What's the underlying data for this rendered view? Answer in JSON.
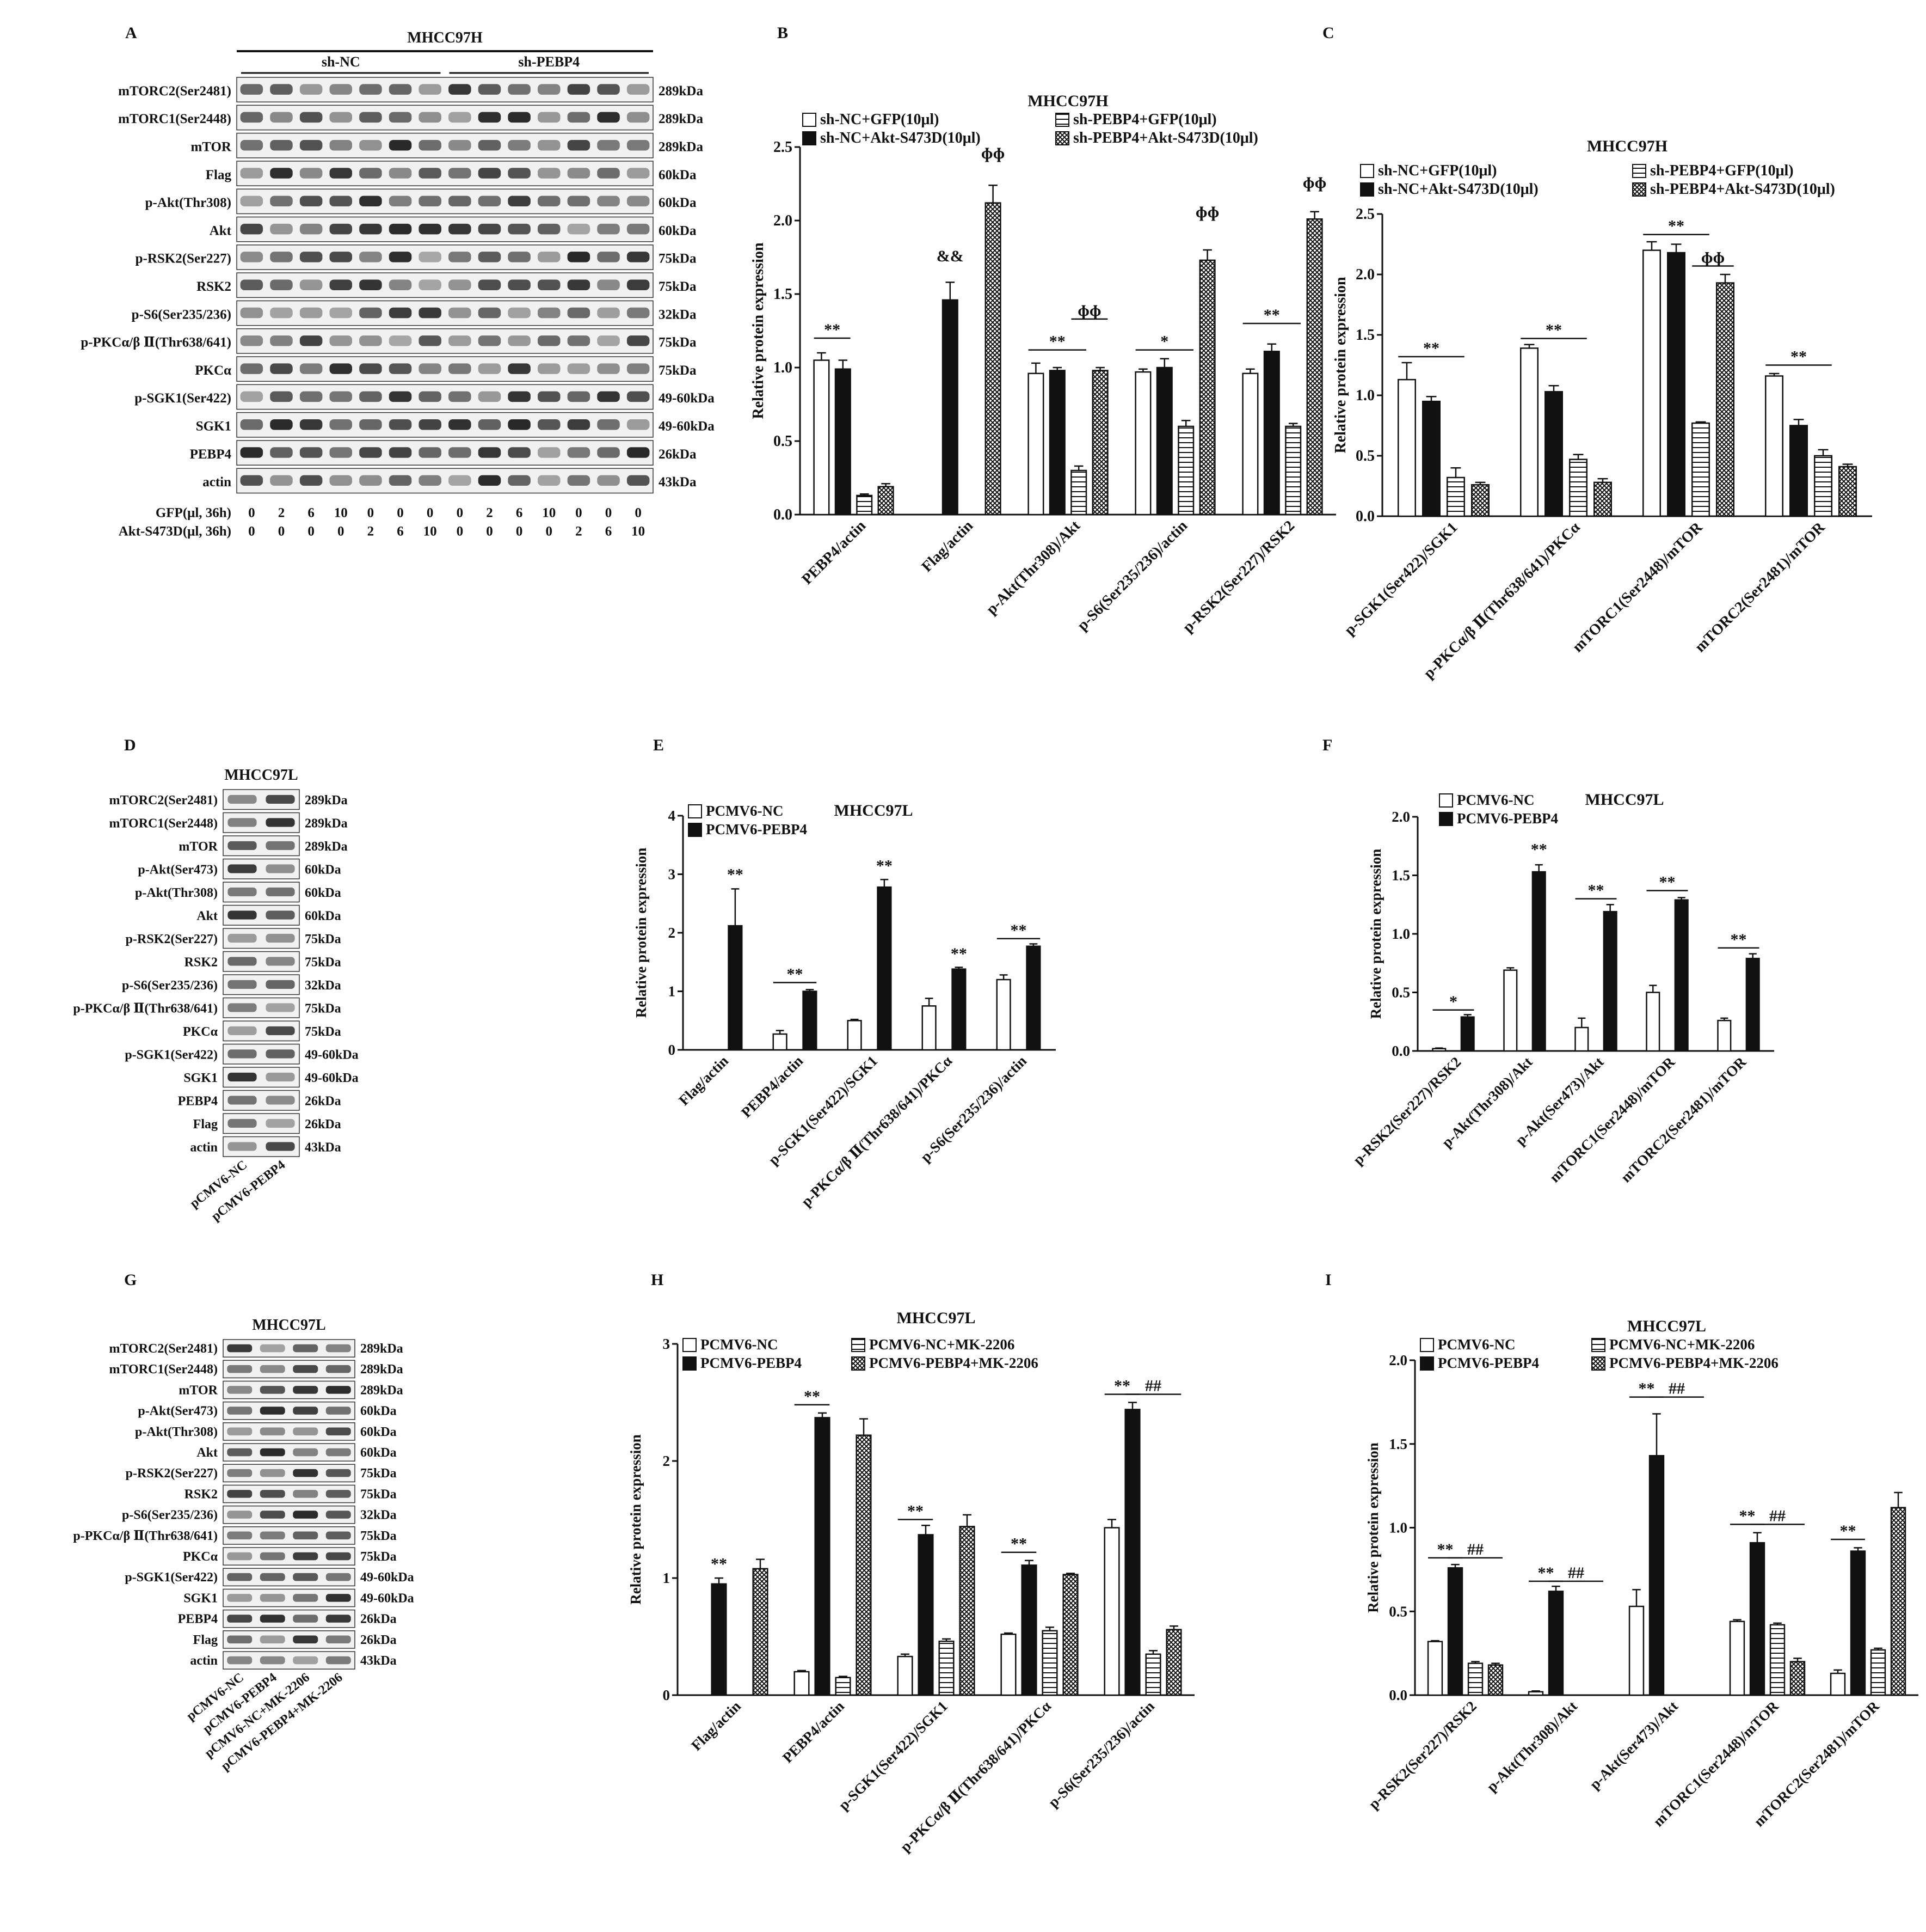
{
  "panel_letters": [
    "A",
    "B",
    "C",
    "D",
    "E",
    "F",
    "G",
    "H",
    "I"
  ],
  "colors": {
    "ink": "#111111",
    "blot_bg": "#f1f1f1",
    "band": "#1c1c1c"
  },
  "blots": {
    "A": {
      "title": "MHCC97H",
      "groups": [
        "sh-NC",
        "sh-PEBP4"
      ],
      "lanes": 14,
      "rows": [
        {
          "name": "mTORC2(Ser2481)",
          "kda": "289kDa"
        },
        {
          "name": "mTORC1(Ser2448)",
          "kda": "289kDa"
        },
        {
          "name": "mTOR",
          "kda": "289kDa"
        },
        {
          "name": "Flag",
          "kda": "60kDa"
        },
        {
          "name": "p-Akt(Thr308)",
          "kda": "60kDa"
        },
        {
          "name": "Akt",
          "kda": "60kDa"
        },
        {
          "name": "p-RSK2(Ser227)",
          "kda": "75kDa"
        },
        {
          "name": "RSK2",
          "kda": "75kDa"
        },
        {
          "name": "p-S6(Ser235/236)",
          "kda": "32kDa"
        },
        {
          "name": "p-PKCα/β Ⅱ(Thr638/641)",
          "kda": "75kDa"
        },
        {
          "name": "PKCα",
          "kda": "75kDa"
        },
        {
          "name": "p-SGK1(Ser422)",
          "kda": "49-60kDa"
        },
        {
          "name": "SGK1",
          "kda": "49-60kDa"
        },
        {
          "name": "PEBP4",
          "kda": "26kDa"
        },
        {
          "name": "actin",
          "kda": "43kDa"
        }
      ],
      "dose_rows": [
        {
          "label": "GFP(μl, 36h)",
          "values": [
            "0",
            "2",
            "6",
            "10",
            "0",
            "0",
            "0",
            "0",
            "2",
            "6",
            "10",
            "0",
            "0",
            "0"
          ]
        },
        {
          "label": "Akt-S473D(μl, 36h)",
          "values": [
            "0",
            "0",
            "0",
            "0",
            "2",
            "6",
            "10",
            "0",
            "0",
            "0",
            "0",
            "2",
            "6",
            "10"
          ]
        }
      ]
    },
    "D": {
      "title": "MHCC97L",
      "lanes": 2,
      "rows": [
        {
          "name": "mTORC2(Ser2481)",
          "kda": "289kDa"
        },
        {
          "name": "mTORC1(Ser2448)",
          "kda": "289kDa"
        },
        {
          "name": "mTOR",
          "kda": "289kDa"
        },
        {
          "name": "p-Akt(Ser473)",
          "kda": "60kDa"
        },
        {
          "name": "p-Akt(Thr308)",
          "kda": "60kDa"
        },
        {
          "name": "Akt",
          "kda": "60kDa"
        },
        {
          "name": "p-RSK2(Ser227)",
          "kda": "75kDa"
        },
        {
          "name": "RSK2",
          "kda": "75kDa"
        },
        {
          "name": "p-S6(Ser235/236)",
          "kda": "32kDa"
        },
        {
          "name": "p-PKCα/β Ⅱ(Thr638/641)",
          "kda": "75kDa"
        },
        {
          "name": "PKCα",
          "kda": "75kDa"
        },
        {
          "name": "p-SGK1(Ser422)",
          "kda": "49-60kDa"
        },
        {
          "name": "SGK1",
          "kda": "49-60kDa"
        },
        {
          "name": "PEBP4",
          "kda": "26kDa"
        },
        {
          "name": "Flag",
          "kda": "26kDa"
        },
        {
          "name": "actin",
          "kda": "43kDa"
        }
      ],
      "lane_labels": [
        "pCMV6-NC",
        "pCMV6-PEBP4"
      ]
    },
    "G": {
      "title": "MHCC97L",
      "lanes": 4,
      "rows": [
        {
          "name": "mTORC2(Ser2481)",
          "kda": "289kDa"
        },
        {
          "name": "mTORC1(Ser2448)",
          "kda": "289kDa"
        },
        {
          "name": "mTOR",
          "kda": "289kDa"
        },
        {
          "name": "p-Akt(Ser473)",
          "kda": "60kDa"
        },
        {
          "name": "p-Akt(Thr308)",
          "kda": "60kDa"
        },
        {
          "name": "Akt",
          "kda": "60kDa"
        },
        {
          "name": "p-RSK2(Ser227)",
          "kda": "75kDa"
        },
        {
          "name": "RSK2",
          "kda": "75kDa"
        },
        {
          "name": "p-S6(Ser235/236)",
          "kda": "32kDa"
        },
        {
          "name": "p-PKCα/β Ⅱ(Thr638/641)",
          "kda": "75kDa"
        },
        {
          "name": "PKCα",
          "kda": "75kDa"
        },
        {
          "name": "p-SGK1(Ser422)",
          "kda": "49-60kDa"
        },
        {
          "name": "SGK1",
          "kda": "49-60kDa"
        },
        {
          "name": "PEBP4",
          "kda": "26kDa"
        },
        {
          "name": "Flag",
          "kda": "26kDa"
        },
        {
          "name": "actin",
          "kda": "43kDa"
        }
      ],
      "lane_labels": [
        "pCMV6-NC",
        "pCMV6-PEBP4",
        "pCMV6-NC+MK-2206",
        "pCMV6-PEBP4+MK-2206"
      ]
    }
  },
  "chart_data": [
    {
      "panel": "B",
      "type": "bar",
      "title": "MHCC97H",
      "ylabel": "Relative protein expression",
      "ylim": [
        0,
        2.5
      ],
      "yticks": [
        "0.0",
        "0.5",
        "1.0",
        "1.5",
        "2.0",
        "2.5"
      ],
      "categories": [
        "PEBP4/actin",
        "Flag/actin",
        "p-Akt(Thr308)/Akt",
        "p-S6(Ser235/236)/actin",
        "p-RSK2(Ser227)/RSK2"
      ],
      "series": [
        {
          "name": "sh-NC+GFP(10μl)",
          "pattern": "open",
          "values": [
            1.05,
            0,
            0.96,
            0.97,
            0.96
          ],
          "errors": [
            0.05,
            0,
            0.07,
            0.02,
            0.03
          ]
        },
        {
          "name": "sh-NC+Akt-S473D(10μl)",
          "pattern": "solid",
          "values": [
            0.99,
            1.46,
            0.98,
            1.0,
            1.11
          ],
          "errors": [
            0.06,
            0.12,
            0.02,
            0.06,
            0.05
          ]
        },
        {
          "name": "sh-PEBP4+GFP(10μl)",
          "pattern": "hlines",
          "values": [
            0.13,
            0,
            0.3,
            0.6,
            0.6
          ],
          "errors": [
            0.01,
            0,
            0.03,
            0.04,
            0.02
          ]
        },
        {
          "name": "sh-PEBP4+Akt-S473D(10μl)",
          "pattern": "cross",
          "values": [
            0.19,
            2.12,
            0.98,
            1.73,
            2.01
          ],
          "errors": [
            0.02,
            0.12,
            0.02,
            0.07,
            0.05
          ]
        }
      ],
      "annotations": [
        {
          "text": "**",
          "cat": 0,
          "from": 0,
          "to": 1,
          "y": 1.2
        },
        {
          "text": "&&",
          "cat": 1,
          "s": 1,
          "y": 1.7
        },
        {
          "text": "ɸɸ",
          "cat": 1,
          "s": 3,
          "y": 2.4
        },
        {
          "text": "**",
          "cat": 2,
          "from": 0,
          "to": 2,
          "y": 1.12
        },
        {
          "text": "ɸɸ",
          "cat": 2,
          "from": 2,
          "to": 3,
          "y": 1.33
        },
        {
          "text": "*",
          "cat": 3,
          "from": 0,
          "to": 2,
          "y": 1.12
        },
        {
          "text": "ɸɸ",
          "cat": 3,
          "s": 3,
          "y": 2.0
        },
        {
          "text": "**",
          "cat": 4,
          "from": 0,
          "to": 2,
          "y": 1.3
        },
        {
          "text": "ɸɸ",
          "cat": 4,
          "s": 3,
          "y": 2.2
        }
      ]
    },
    {
      "panel": "C",
      "type": "bar",
      "title": "MHCC97H",
      "ylabel": "Relative protein expression",
      "ylim": [
        0,
        2.5
      ],
      "yticks": [
        "0.0",
        "0.5",
        "1.0",
        "1.5",
        "2.0",
        "2.5"
      ],
      "categories": [
        "p-SGK1(Ser422)/SGK1",
        "p-PKCα/β Ⅱ(Thr638/641)/PKCα",
        "mTORC1(Ser2448)/mTOR",
        "mTORC2(Ser2481)/mTOR"
      ],
      "series": [
        {
          "name": "sh-NC+GFP(10μl)",
          "pattern": "open",
          "values": [
            1.13,
            1.39,
            2.2,
            1.16
          ],
          "errors": [
            0.14,
            0.03,
            0.07,
            0.02
          ]
        },
        {
          "name": "sh-NC+Akt-S473D(10μl)",
          "pattern": "solid",
          "values": [
            0.95,
            1.03,
            2.18,
            0.75
          ],
          "errors": [
            0.04,
            0.05,
            0.07,
            0.05
          ]
        },
        {
          "name": "sh-PEBP4+GFP(10μl)",
          "pattern": "hlines",
          "values": [
            0.32,
            0.47,
            0.77,
            0.5
          ],
          "errors": [
            0.08,
            0.04,
            0.01,
            0.05
          ]
        },
        {
          "name": "sh-PEBP4+Akt-S473D(10μl)",
          "pattern": "cross",
          "values": [
            0.26,
            0.28,
            1.93,
            0.41
          ],
          "errors": [
            0.02,
            0.03,
            0.07,
            0.02
          ]
        }
      ],
      "annotations": [
        {
          "text": "**",
          "cat": 0,
          "from": 0,
          "to": 2,
          "y": 1.32
        },
        {
          "text": "**",
          "cat": 1,
          "from": 0,
          "to": 2,
          "y": 1.47
        },
        {
          "text": "**",
          "cat": 2,
          "from": 0,
          "to": 2,
          "y": 2.33
        },
        {
          "text": "ɸɸ",
          "cat": 2,
          "from": 2,
          "to": 3,
          "y": 2.07
        },
        {
          "text": "**",
          "cat": 3,
          "from": 0,
          "to": 2,
          "y": 1.25
        }
      ]
    },
    {
      "panel": "E",
      "type": "bar",
      "title": "MHCC97L",
      "ylabel": "Relative protein expression",
      "ylim": [
        0,
        4
      ],
      "yticks": [
        "0",
        "1",
        "2",
        "3",
        "4"
      ],
      "categories": [
        "Flag/actin",
        "PEBP4/actin",
        "p-SGK1(Ser422)/SGK1",
        "p-PKCα/β Ⅱ(Thr638/641)/PKCα",
        "p-S6(Ser235/236)/actin"
      ],
      "series": [
        {
          "name": "PCMV6-NC",
          "pattern": "open",
          "values": [
            0,
            0.27,
            0.5,
            0.75,
            1.2
          ],
          "errors": [
            0,
            0.06,
            0.02,
            0.13,
            0.08
          ]
        },
        {
          "name": "PCMV6-PEBP4",
          "pattern": "solid",
          "values": [
            2.12,
            1.0,
            2.78,
            1.38,
            1.77
          ],
          "errors": [
            0.63,
            0.03,
            0.13,
            0.03,
            0.04
          ]
        }
      ],
      "annotations": [
        {
          "text": "**",
          "cat": 0,
          "s": 1,
          "y": 2.85
        },
        {
          "text": "**",
          "cat": 1,
          "from": 0,
          "to": 1,
          "y": 1.15
        },
        {
          "text": "**",
          "cat": 2,
          "s": 1,
          "y": 3.0
        },
        {
          "text": "**",
          "cat": 3,
          "s": 1,
          "y": 1.5
        },
        {
          "text": "**",
          "cat": 4,
          "from": 0,
          "to": 1,
          "y": 1.9
        }
      ]
    },
    {
      "panel": "F",
      "type": "bar",
      "title": "MHCC97L",
      "ylabel": "Relative protein expression",
      "ylim": [
        0,
        2
      ],
      "yticks": [
        "0.0",
        "0.5",
        "1.0",
        "1.5",
        "2.0"
      ],
      "categories": [
        "p-RSK2(Ser227)/RSK2",
        "p-Akt(Thr308)/Akt",
        "p-Akt(Ser473)/Akt",
        "mTORC1(Ser2448)/mTOR",
        "mTORC2(Ser2481)/mTOR"
      ],
      "series": [
        {
          "name": "PCMV6-NC",
          "pattern": "open",
          "values": [
            0.02,
            0.69,
            0.2,
            0.5,
            0.26
          ],
          "errors": [
            0.005,
            0.02,
            0.08,
            0.06,
            0.02
          ]
        },
        {
          "name": "PCMV6-PEBP4",
          "pattern": "solid",
          "values": [
            0.29,
            1.53,
            1.19,
            1.29,
            0.79
          ],
          "errors": [
            0.02,
            0.06,
            0.06,
            0.02,
            0.04
          ]
        }
      ],
      "annotations": [
        {
          "text": "*",
          "cat": 0,
          "from": 0,
          "to": 1,
          "y": 0.35
        },
        {
          "text": "**",
          "cat": 1,
          "s": 1,
          "y": 1.65
        },
        {
          "text": "**",
          "cat": 2,
          "from": 0,
          "to": 1,
          "y": 1.3
        },
        {
          "text": "**",
          "cat": 3,
          "from": 0,
          "to": 1,
          "y": 1.37
        },
        {
          "text": "**",
          "cat": 4,
          "from": 0,
          "to": 1,
          "y": 0.88
        }
      ]
    },
    {
      "panel": "H",
      "type": "bar",
      "title": "MHCC97L",
      "ylabel": "Relative protein expression",
      "ylim": [
        0,
        3
      ],
      "yticks": [
        "0",
        "1",
        "2",
        "3"
      ],
      "categories": [
        "Flag/actin",
        "PEBP4/actin",
        "p-SGK1(Ser422)/SGK1",
        "p-PKCα/β Ⅱ(Thr638/641)/PKCα",
        "p-S6(Ser235/236)/actin"
      ],
      "series": [
        {
          "name": "PCMV6-NC",
          "pattern": "open",
          "values": [
            0,
            0.2,
            0.33,
            0.52,
            1.43
          ],
          "errors": [
            0,
            0.01,
            0.02,
            0.01,
            0.07
          ]
        },
        {
          "name": "PCMV6-PEBP4",
          "pattern": "solid",
          "values": [
            0.95,
            2.37,
            1.37,
            1.11,
            2.44
          ],
          "errors": [
            0.05,
            0.04,
            0.08,
            0.04,
            0.06
          ]
        },
        {
          "name": "PCMV6-NC+MK-2206",
          "pattern": "hlines",
          "values": [
            0,
            0.15,
            0.46,
            0.55,
            0.35
          ],
          "errors": [
            0,
            0.01,
            0.02,
            0.03,
            0.03
          ]
        },
        {
          "name": "PCMV6-PEBP4+MK-2206",
          "pattern": "cross",
          "values": [
            1.08,
            2.22,
            1.44,
            1.03,
            0.56
          ],
          "errors": [
            0.08,
            0.14,
            0.1,
            0.01,
            0.03
          ]
        }
      ],
      "annotations": [
        {
          "text": "**",
          "cat": 0,
          "s": 1,
          "y": 1.05
        },
        {
          "text": "**",
          "cat": 1,
          "from": 0,
          "to": 1,
          "y": 2.48
        },
        {
          "text": "**",
          "cat": 2,
          "from": 0,
          "to": 1,
          "y": 1.5
        },
        {
          "text": "**",
          "cat": 3,
          "from": 0,
          "to": 1,
          "y": 1.22
        },
        {
          "text": "**",
          "cat": 4,
          "from": 0,
          "to": 1,
          "y": 2.57
        },
        {
          "text": "##",
          "cat": 4,
          "from": 1,
          "to": 3,
          "y": 2.57
        }
      ]
    },
    {
      "panel": "I",
      "type": "bar",
      "title": "MHCC97L",
      "ylabel": "Relative protein expression",
      "ylim": [
        0,
        2
      ],
      "yticks": [
        "0.0",
        "0.5",
        "1.0",
        "1.5",
        "2.0"
      ],
      "categories": [
        "p-RSK2(Ser227)/RSK2",
        "p-Akt(Thr308)/Akt",
        "p-Akt(Ser473)/Akt",
        "mTORC1(Ser2448)/mTOR",
        "mTORC2(Ser2481)/mTOR"
      ],
      "series": [
        {
          "name": "PCMV6-NC",
          "pattern": "open",
          "values": [
            0.32,
            0.02,
            0.53,
            0.44,
            0.13
          ],
          "errors": [
            0.005,
            0.005,
            0.1,
            0.01,
            0.02
          ]
        },
        {
          "name": "PCMV6-PEBP4",
          "pattern": "solid",
          "values": [
            0.76,
            0.62,
            1.43,
            0.91,
            0.86
          ],
          "errors": [
            0.02,
            0.03,
            0.25,
            0.06,
            0.02
          ]
        },
        {
          "name": "PCMV6-NC+MK-2206",
          "pattern": "hlines",
          "values": [
            0.19,
            0,
            0,
            0.42,
            0.27
          ],
          "errors": [
            0.01,
            0,
            0,
            0.01,
            0.01
          ]
        },
        {
          "name": "PCMV6-PEBP4+MK-2206",
          "pattern": "cross",
          "values": [
            0.18,
            0,
            0,
            0.2,
            1.12
          ],
          "errors": [
            0.01,
            0,
            0,
            0.02,
            0.09
          ]
        }
      ],
      "annotations": [
        {
          "text": "**",
          "cat": 0,
          "from": 0,
          "to": 1,
          "y": 0.82
        },
        {
          "text": "##",
          "cat": 0,
          "from": 1,
          "to": 3,
          "y": 0.82
        },
        {
          "text": "**",
          "cat": 1,
          "from": 0,
          "to": 1,
          "y": 0.68
        },
        {
          "text": "##",
          "cat": 1,
          "from": 1,
          "to": 3,
          "y": 0.68
        },
        {
          "text": "**",
          "cat": 2,
          "from": 0,
          "to": 1,
          "y": 1.78
        },
        {
          "text": "##",
          "cat": 2,
          "from": 1,
          "to": 3,
          "y": 1.78
        },
        {
          "text": "**",
          "cat": 3,
          "from": 0,
          "to": 1,
          "y": 1.02
        },
        {
          "text": "##",
          "cat": 3,
          "from": 1,
          "to": 3,
          "y": 1.02
        },
        {
          "text": "**",
          "cat": 4,
          "from": 0,
          "to": 1,
          "y": 0.93
        }
      ]
    }
  ]
}
